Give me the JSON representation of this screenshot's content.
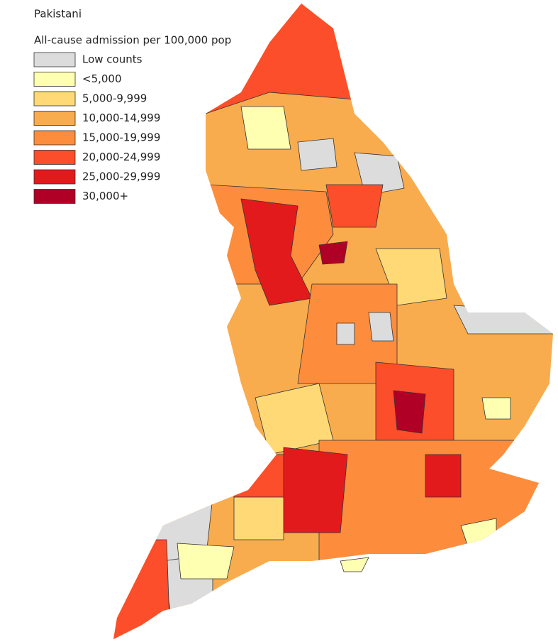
{
  "title": "Pakistani",
  "subtitle": "All-cause admission per 100,000 pop",
  "legend": [
    {
      "label": "Low counts",
      "color": "#dcdcdc"
    },
    {
      "label": "<5,000",
      "color": "#ffffb2"
    },
    {
      "label": "5,000-9,999",
      "color": "#fed976"
    },
    {
      "label": "10,000-14,999",
      "color": "#f9ac4e"
    },
    {
      "label": "15,000-19,999",
      "color": "#fd8d3c"
    },
    {
      "label": "20,000-24,999",
      "color": "#fc4e2a"
    },
    {
      "label": "25,000-29,999",
      "color": "#e31a1c"
    },
    {
      "label": "30,000+",
      "color": "#b10026"
    }
  ]
}
